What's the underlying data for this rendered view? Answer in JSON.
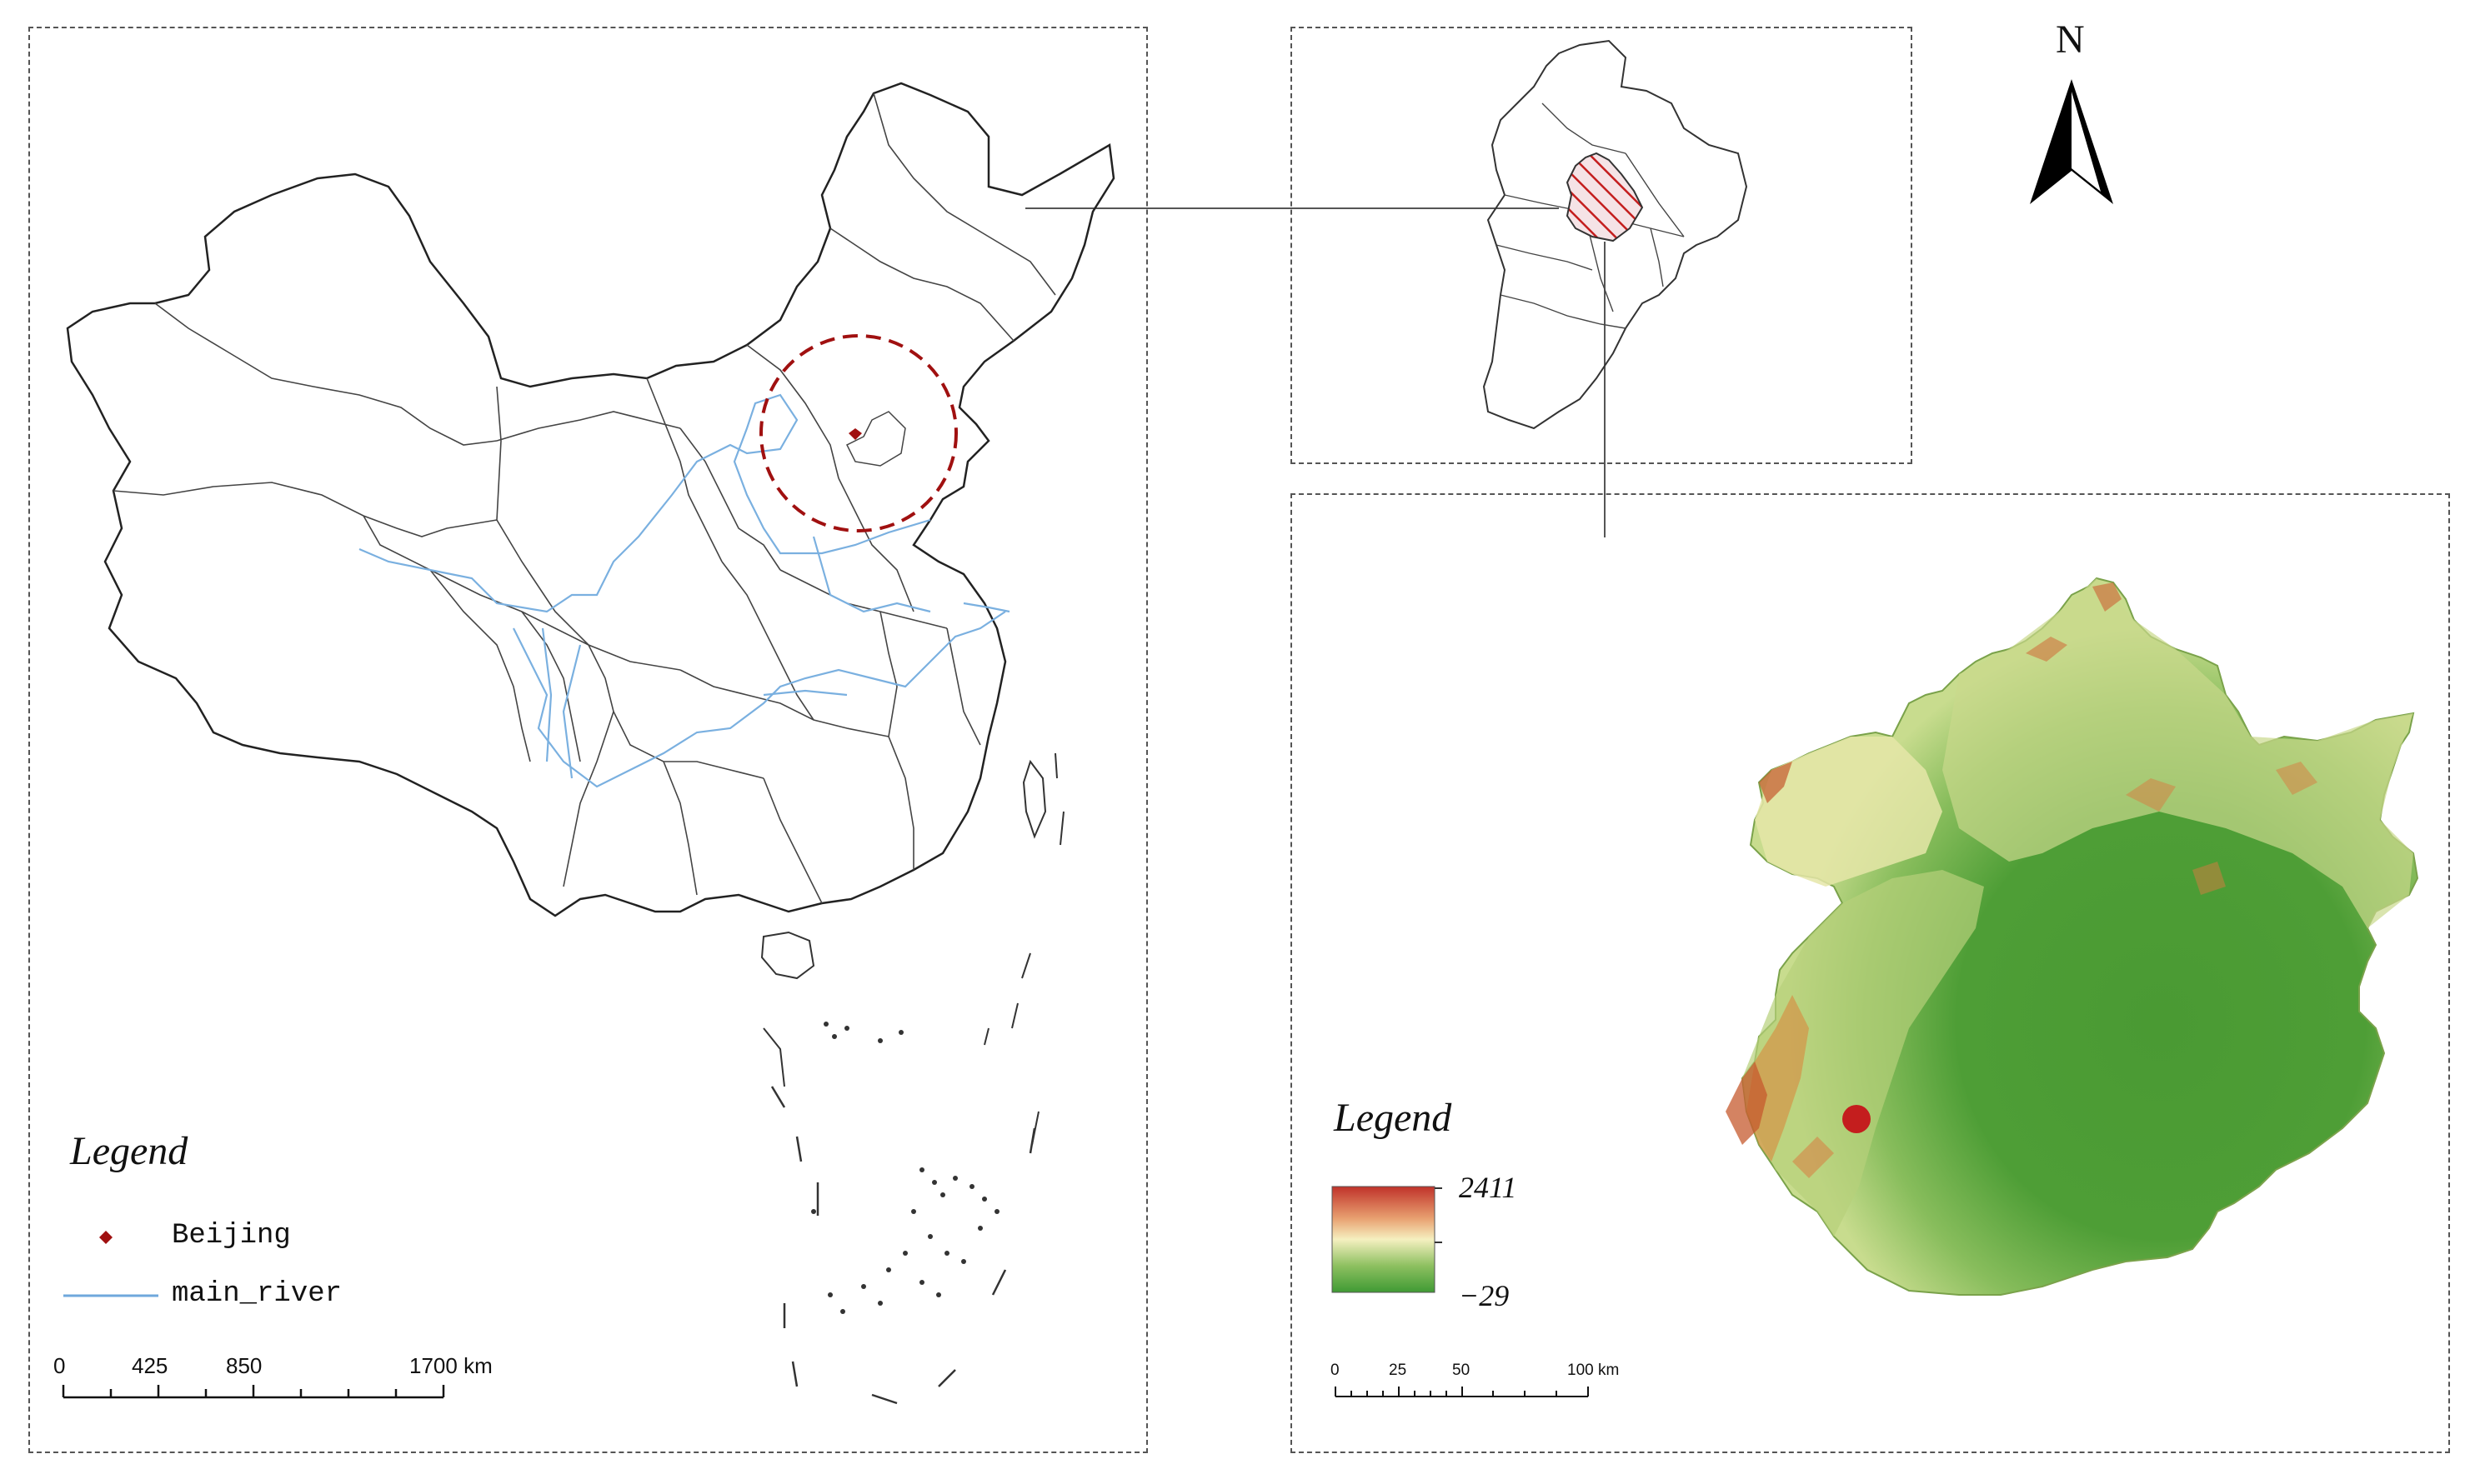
{
  "north_arrow": {
    "label": "N"
  },
  "china_map": {
    "legend": {
      "title": "Legend",
      "items": [
        {
          "label": "Beijing",
          "symbol": "point",
          "color": "#a01010"
        },
        {
          "label": "main_river",
          "symbol": "line",
          "color": "#6fa8dc"
        }
      ]
    },
    "scale_bar": {
      "ticks": [
        "0",
        "425",
        "850",
        "1700 km"
      ]
    }
  },
  "beijing_map": {
    "legend": {
      "title": "Legend",
      "elevation_max": "2411",
      "elevation_min": "−29",
      "ramp_colors": [
        "#c0322a",
        "#e8a070",
        "#f5f0c0",
        "#8dc060",
        "#3f9a34"
      ]
    },
    "scale_bar": {
      "ticks": [
        "0",
        "25",
        "50",
        "100 km"
      ]
    },
    "study_site_color": "#c41e1e"
  }
}
